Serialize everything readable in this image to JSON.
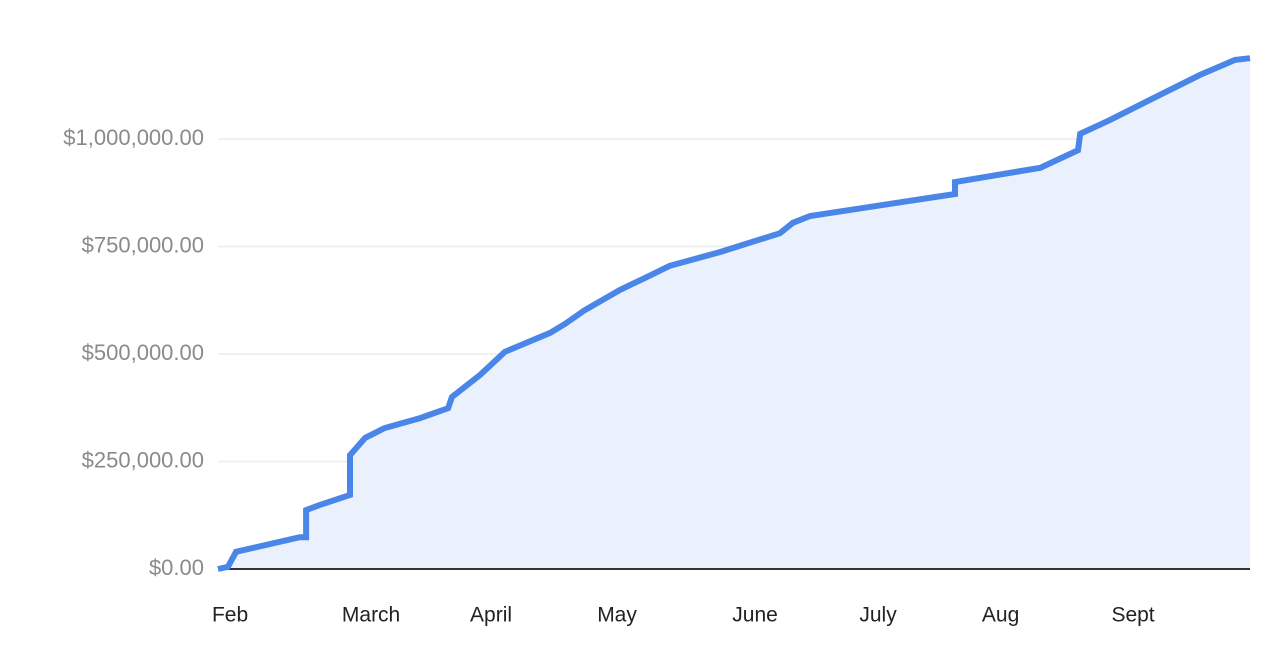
{
  "chart_data": {
    "type": "area",
    "color": "#4a86e8",
    "fill": "#eaf1fd",
    "grid": true,
    "x": [
      0,
      2.3,
      4.2,
      19,
      20.5,
      20.5,
      23.7,
      30.7,
      30.7,
      34.2,
      38.8,
      47,
      53.5,
      54.4,
      60.9,
      66.7,
      77.2,
      80.7,
      85.3,
      93.5,
      99.3,
      105,
      116.7,
      130.7,
      133.7,
      137.7,
      171.4,
      171.4,
      191.2,
      200,
      200.5,
      207.4,
      216.7,
      228.4,
      236.5,
      240
    ],
    "values": [
      0,
      5000,
      40000,
      74000,
      74000,
      137000,
      149000,
      172000,
      265000,
      305000,
      328000,
      351000,
      374000,
      400000,
      451000,
      505000,
      549000,
      570000,
      602000,
      649000,
      677000,
      705000,
      737000,
      781000,
      805000,
      821000,
      872000,
      900000,
      933000,
      974000,
      1012000,
      1044000,
      1091000,
      1149000,
      1184000,
      1188000
    ],
    "xlim": [
      0,
      240
    ],
    "xticks": [
      {
        "value": 2.8,
        "label": "Feb"
      },
      {
        "value": 35.6,
        "label": "March"
      },
      {
        "value": 63.5,
        "label": "April"
      },
      {
        "value": 92.8,
        "label": "May"
      },
      {
        "value": 124.9,
        "label": "June"
      },
      {
        "value": 153.5,
        "label": "July"
      },
      {
        "value": 182,
        "label": "Aug"
      },
      {
        "value": 212.8,
        "label": "Sept"
      }
    ],
    "ylim": [
      0,
      1300000
    ],
    "yticks": [
      {
        "value": 0,
        "label": "$0.00"
      },
      {
        "value": 250000,
        "label": "$250,000.00"
      },
      {
        "value": 500000,
        "label": "$500,000.00"
      },
      {
        "value": 750000,
        "label": "$750,000.00"
      },
      {
        "value": 1000000,
        "label": "$1,000,000.00"
      }
    ]
  }
}
